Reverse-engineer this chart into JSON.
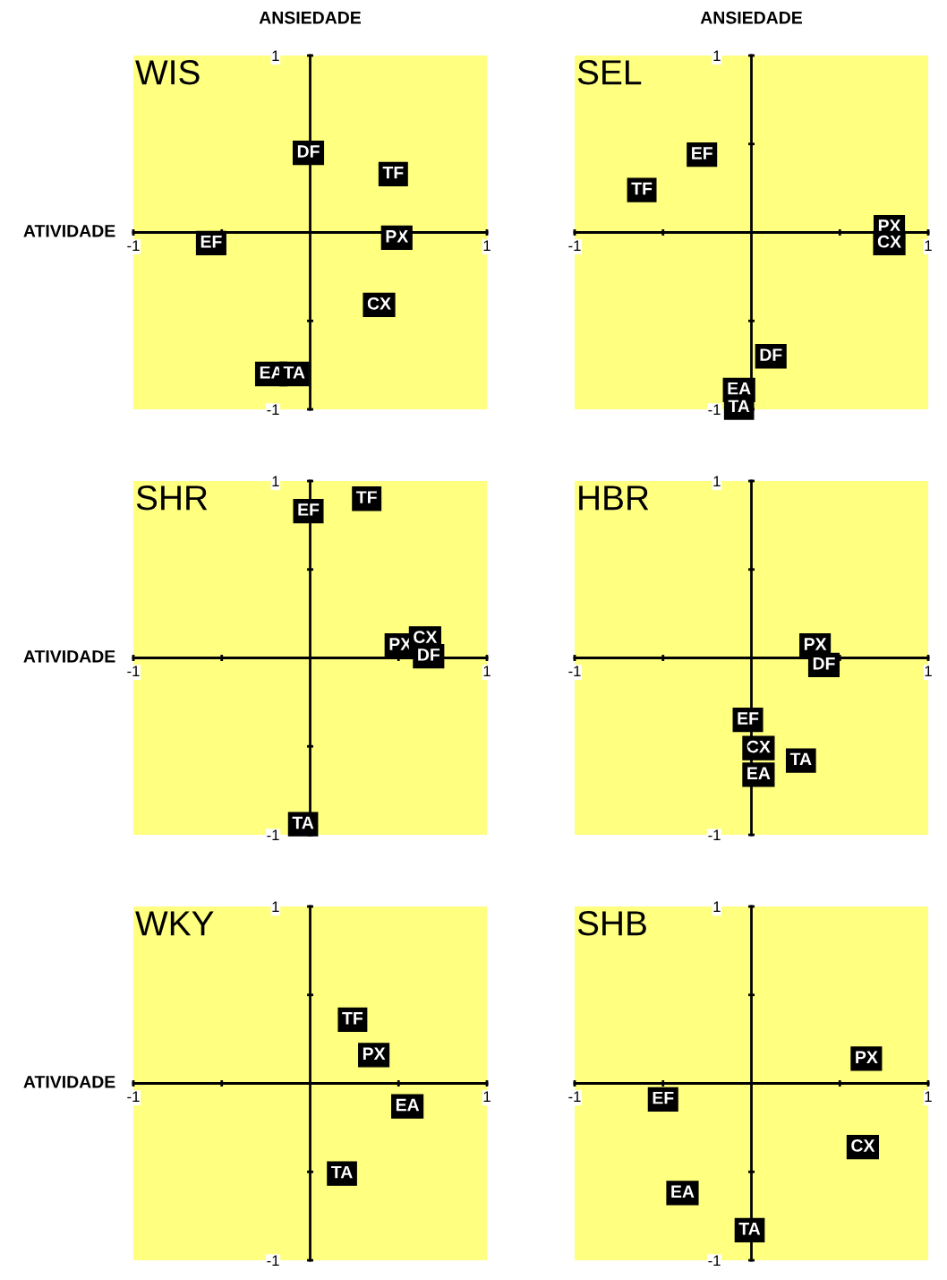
{
  "chart_data": [
    {
      "type": "scatter",
      "title": "WIS",
      "xlabel": "ANSIEDADE",
      "ylabel": "ATIVIDADE",
      "xlim": [
        -1,
        1
      ],
      "ylim": [
        -1,
        1
      ],
      "grid": false,
      "legend": false,
      "xticks": [
        {
          "value": -1,
          "label": "-1"
        },
        {
          "value": -0.5,
          "label": null
        },
        {
          "value": 0.5,
          "label": null
        },
        {
          "value": 1,
          "label": "1"
        }
      ],
      "yticks": [
        {
          "value": -1,
          "label": "-1"
        },
        {
          "value": -0.5,
          "label": null
        },
        {
          "value": 0.5,
          "label": null
        },
        {
          "value": 1,
          "label": "1"
        }
      ],
      "series": [
        {
          "name": "DF",
          "color": "#000000",
          "x": [
            -0.01
          ],
          "values": [
            0.45
          ]
        },
        {
          "name": "TF",
          "color": "#000000",
          "x": [
            0.47
          ],
          "values": [
            0.33
          ]
        },
        {
          "name": "EF",
          "color": "#000000",
          "x": [
            -0.56
          ],
          "values": [
            -0.06
          ]
        },
        {
          "name": "PX",
          "color": "#000000",
          "x": [
            0.49
          ],
          "values": [
            -0.03
          ]
        },
        {
          "name": "CX",
          "color": "#000000",
          "x": [
            0.39
          ],
          "values": [
            -0.41
          ]
        },
        {
          "name": "EA",
          "color": "#000000",
          "x": [
            -0.22
          ],
          "values": [
            -0.8
          ]
        },
        {
          "name": "TA",
          "color": "#000000",
          "x": [
            -0.09
          ],
          "values": [
            -0.8
          ]
        }
      ]
    },
    {
      "type": "scatter",
      "title": "SHR",
      "ylabel": "ATIVIDADE",
      "xlim": [
        -1,
        1
      ],
      "ylim": [
        -1,
        1
      ],
      "grid": false,
      "legend": false,
      "xticks": [
        {
          "value": -1,
          "label": "-1"
        },
        {
          "value": -0.5,
          "label": null
        },
        {
          "value": 0.5,
          "label": null
        },
        {
          "value": 1,
          "label": "1"
        }
      ],
      "yticks": [
        {
          "value": -1,
          "label": "-1"
        },
        {
          "value": -0.5,
          "label": null
        },
        {
          "value": 0.5,
          "label": null
        },
        {
          "value": 1,
          "label": "1"
        }
      ],
      "series": [
        {
          "name": "TF",
          "color": "#000000",
          "x": [
            0.32
          ],
          "values": [
            0.9
          ]
        },
        {
          "name": "EF",
          "color": "#000000",
          "x": [
            -0.01
          ],
          "values": [
            0.83
          ]
        },
        {
          "name": "PX",
          "color": "#000000",
          "x": [
            0.51
          ],
          "values": [
            0.07
          ]
        },
        {
          "name": "CX",
          "color": "#000000",
          "x": [
            0.65
          ],
          "values": [
            0.11
          ]
        },
        {
          "name": "DF",
          "color": "#000000",
          "x": [
            0.67
          ],
          "values": [
            0.01
          ]
        },
        {
          "name": "TA",
          "color": "#000000",
          "x": [
            -0.04
          ],
          "values": [
            -0.94
          ]
        }
      ]
    },
    {
      "type": "scatter",
      "title": "WKY",
      "ylabel": "ATIVIDADE",
      "xlim": [
        -1,
        1
      ],
      "ylim": [
        -1,
        1
      ],
      "grid": false,
      "legend": false,
      "xticks": [
        {
          "value": -1,
          "label": "-1"
        },
        {
          "value": -0.5,
          "label": null
        },
        {
          "value": 0.5,
          "label": null
        },
        {
          "value": 1,
          "label": "1"
        }
      ],
      "yticks": [
        {
          "value": -1,
          "label": "-1"
        },
        {
          "value": -0.5,
          "label": null
        },
        {
          "value": 0.5,
          "label": null
        },
        {
          "value": 1,
          "label": "1"
        }
      ],
      "series": [
        {
          "name": "TF",
          "color": "#000000",
          "x": [
            0.24
          ],
          "values": [
            0.36
          ]
        },
        {
          "name": "PX",
          "color": "#000000",
          "x": [
            0.36
          ],
          "values": [
            0.16
          ]
        },
        {
          "name": "EA",
          "color": "#000000",
          "x": [
            0.55
          ],
          "values": [
            -0.13
          ]
        },
        {
          "name": "TA",
          "color": "#000000",
          "x": [
            0.18
          ],
          "values": [
            -0.51
          ]
        }
      ]
    },
    {
      "type": "scatter",
      "title": "SEL",
      "xlabel": "ANSIEDADE",
      "xlim": [
        -1,
        1
      ],
      "ylim": [
        -1,
        1
      ],
      "grid": false,
      "legend": false,
      "xticks": [
        {
          "value": -1,
          "label": "-1"
        },
        {
          "value": -0.5,
          "label": null
        },
        {
          "value": 0.5,
          "label": null
        },
        {
          "value": 1,
          "label": "1"
        }
      ],
      "yticks": [
        {
          "value": -1,
          "label": "-1"
        },
        {
          "value": -0.5,
          "label": null
        },
        {
          "value": 0.5,
          "label": null
        },
        {
          "value": 1,
          "label": "1"
        }
      ],
      "series": [
        {
          "name": "EF",
          "color": "#000000",
          "x": [
            -0.28
          ],
          "values": [
            0.44
          ]
        },
        {
          "name": "TF",
          "color": "#000000",
          "x": [
            -0.62
          ],
          "values": [
            0.24
          ]
        },
        {
          "name": "PX",
          "color": "#000000",
          "x": [
            0.78
          ],
          "values": [
            0.03
          ]
        },
        {
          "name": "CX",
          "color": "#000000",
          "x": [
            0.78
          ],
          "values": [
            -0.06
          ]
        },
        {
          "name": "DF",
          "color": "#000000",
          "x": [
            0.11
          ],
          "values": [
            -0.7
          ]
        },
        {
          "name": "EA",
          "color": "#000000",
          "x": [
            -0.07
          ],
          "values": [
            -0.89
          ]
        },
        {
          "name": "TA",
          "color": "#000000",
          "x": [
            -0.07
          ],
          "values": [
            -0.99
          ]
        }
      ]
    },
    {
      "type": "scatter",
      "title": "HBR",
      "xlim": [
        -1,
        1
      ],
      "ylim": [
        -1,
        1
      ],
      "grid": false,
      "legend": false,
      "xticks": [
        {
          "value": -1,
          "label": "-1"
        },
        {
          "value": -0.5,
          "label": null
        },
        {
          "value": 0.5,
          "label": null
        },
        {
          "value": 1,
          "label": "1"
        }
      ],
      "yticks": [
        {
          "value": -1,
          "label": "-1"
        },
        {
          "value": -0.5,
          "label": null
        },
        {
          "value": 0.5,
          "label": null
        },
        {
          "value": 1,
          "label": "1"
        }
      ],
      "series": [
        {
          "name": "PX",
          "color": "#000000",
          "x": [
            0.36
          ],
          "values": [
            0.07
          ]
        },
        {
          "name": "DF",
          "color": "#000000",
          "x": [
            0.41
          ],
          "values": [
            -0.04
          ]
        },
        {
          "name": "EF",
          "color": "#000000",
          "x": [
            -0.02
          ],
          "values": [
            -0.35
          ]
        },
        {
          "name": "CX",
          "color": "#000000",
          "x": [
            0.04
          ],
          "values": [
            -0.51
          ]
        },
        {
          "name": "TA",
          "color": "#000000",
          "x": [
            0.28
          ],
          "values": [
            -0.58
          ]
        },
        {
          "name": "EA",
          "color": "#000000",
          "x": [
            0.04
          ],
          "values": [
            -0.66
          ]
        }
      ]
    },
    {
      "type": "scatter",
      "title": "SHB",
      "xlim": [
        -1,
        1
      ],
      "ylim": [
        -1,
        1
      ],
      "grid": false,
      "legend": false,
      "xticks": [
        {
          "value": -1,
          "label": "-1"
        },
        {
          "value": -0.5,
          "label": null
        },
        {
          "value": 0.5,
          "label": null
        },
        {
          "value": 1,
          "label": "1"
        }
      ],
      "yticks": [
        {
          "value": -1,
          "label": "-1"
        },
        {
          "value": -0.5,
          "label": null
        },
        {
          "value": 0.5,
          "label": null
        },
        {
          "value": 1,
          "label": "1"
        }
      ],
      "series": [
        {
          "name": "PX",
          "color": "#000000",
          "x": [
            0.65
          ],
          "values": [
            0.14
          ]
        },
        {
          "name": "EF",
          "color": "#000000",
          "x": [
            -0.5
          ],
          "values": [
            -0.09
          ]
        },
        {
          "name": "CX",
          "color": "#000000",
          "x": [
            0.63
          ],
          "values": [
            -0.36
          ]
        },
        {
          "name": "EA",
          "color": "#000000",
          "x": [
            -0.39
          ],
          "values": [
            -0.62
          ]
        },
        {
          "name": "TA",
          "color": "#000000",
          "x": [
            -0.01
          ],
          "values": [
            -0.83
          ]
        }
      ]
    }
  ]
}
